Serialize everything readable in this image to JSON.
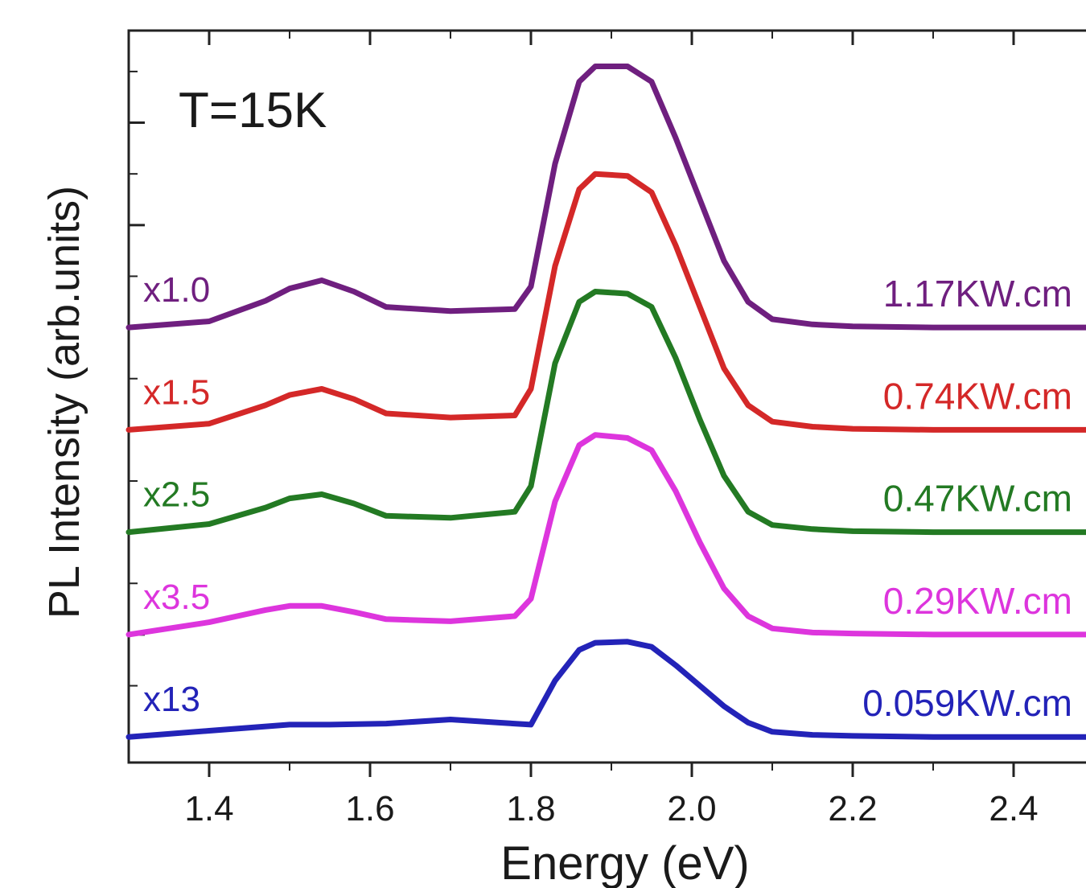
{
  "chart_data": {
    "type": "line",
    "xlabel": "Energy (eV)",
    "ylabel": "PL Intensity (arb.units)",
    "annotation": "T=15K",
    "xlim": [
      1.3,
      2.5
    ],
    "x_ticks": [
      "1.4",
      "1.6",
      "1.8",
      "2.0",
      "2.2",
      "2.4"
    ],
    "y_tick_labels_shown": false,
    "grid": false,
    "series": [
      {
        "scale_label": "x1.0",
        "power_label": "1.17KW.cm",
        "color": "#6f1f7f",
        "x": [
          1.3,
          1.4,
          1.47,
          1.5,
          1.54,
          1.58,
          1.62,
          1.7,
          1.78,
          1.8,
          1.83,
          1.86,
          1.88,
          1.92,
          1.95,
          1.98,
          2.01,
          2.04,
          2.07,
          2.1,
          2.15,
          2.2,
          2.3,
          2.4,
          2.5
        ],
        "y": [
          0.0,
          0.06,
          0.26,
          0.38,
          0.46,
          0.35,
          0.2,
          0.16,
          0.18,
          0.4,
          1.6,
          2.4,
          2.55,
          2.55,
          2.4,
          1.85,
          1.25,
          0.65,
          0.25,
          0.08,
          0.03,
          0.01,
          0.0,
          0.0,
          0.0
        ]
      },
      {
        "scale_label": "x1.5",
        "power_label": "0.74KW.cm",
        "color": "#d42828",
        "x": [
          1.3,
          1.4,
          1.47,
          1.5,
          1.54,
          1.58,
          1.62,
          1.7,
          1.78,
          1.8,
          1.83,
          1.86,
          1.88,
          1.92,
          1.95,
          1.98,
          2.01,
          2.04,
          2.07,
          2.1,
          2.15,
          2.2,
          2.3,
          2.4,
          2.5
        ],
        "y": [
          0.0,
          0.06,
          0.24,
          0.34,
          0.4,
          0.3,
          0.16,
          0.12,
          0.14,
          0.4,
          1.6,
          2.35,
          2.5,
          2.48,
          2.32,
          1.8,
          1.2,
          0.6,
          0.24,
          0.08,
          0.03,
          0.01,
          0.0,
          0.0,
          0.0
        ]
      },
      {
        "scale_label": "x2.5",
        "power_label": "0.47KW.cm",
        "color": "#237a23",
        "x": [
          1.3,
          1.4,
          1.47,
          1.5,
          1.54,
          1.58,
          1.62,
          1.7,
          1.78,
          1.8,
          1.83,
          1.86,
          1.88,
          1.92,
          1.95,
          1.98,
          2.01,
          2.04,
          2.07,
          2.1,
          2.15,
          2.2,
          2.3,
          2.4,
          2.5
        ],
        "y": [
          0.0,
          0.08,
          0.24,
          0.33,
          0.37,
          0.28,
          0.16,
          0.14,
          0.2,
          0.45,
          1.65,
          2.25,
          2.35,
          2.33,
          2.2,
          1.7,
          1.1,
          0.55,
          0.2,
          0.07,
          0.03,
          0.01,
          0.0,
          0.0,
          0.0
        ]
      },
      {
        "scale_label": "x3.5",
        "power_label": "0.29KW.cm",
        "color": "#dd35dd",
        "x": [
          1.3,
          1.4,
          1.47,
          1.5,
          1.54,
          1.58,
          1.62,
          1.7,
          1.78,
          1.8,
          1.83,
          1.86,
          1.88,
          1.92,
          1.95,
          1.98,
          2.01,
          2.04,
          2.07,
          2.1,
          2.15,
          2.2,
          2.3,
          2.4,
          2.5
        ],
        "y": [
          0.0,
          0.12,
          0.24,
          0.28,
          0.28,
          0.22,
          0.15,
          0.13,
          0.18,
          0.35,
          1.3,
          1.85,
          1.95,
          1.92,
          1.8,
          1.4,
          0.9,
          0.45,
          0.18,
          0.06,
          0.02,
          0.01,
          0.0,
          0.0,
          0.0
        ]
      },
      {
        "scale_label": "x13",
        "power_label": "0.059KW.cm",
        "color": "#2323b8",
        "x": [
          1.3,
          1.4,
          1.5,
          1.55,
          1.62,
          1.7,
          1.76,
          1.8,
          1.83,
          1.86,
          1.88,
          1.92,
          1.95,
          1.98,
          2.01,
          2.04,
          2.07,
          2.1,
          2.15,
          2.2,
          2.3,
          2.4,
          2.5
        ],
        "y": [
          0.0,
          0.06,
          0.12,
          0.12,
          0.13,
          0.17,
          0.14,
          0.12,
          0.55,
          0.85,
          0.92,
          0.93,
          0.88,
          0.7,
          0.5,
          0.3,
          0.14,
          0.05,
          0.02,
          0.01,
          0.0,
          0.0,
          0.0
        ]
      }
    ],
    "y_offsets": [
      4.0,
      3.0,
      2.0,
      1.0,
      0.0
    ],
    "ylim": [
      -0.25,
      6.9
    ]
  }
}
